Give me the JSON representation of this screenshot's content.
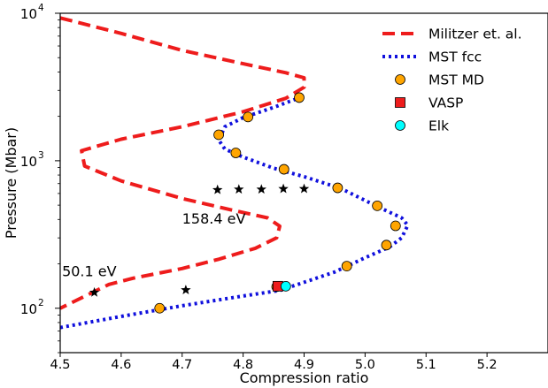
{
  "chart_data": {
    "type": "line",
    "title": "",
    "xlabel": "Compression ratio",
    "ylabel": "Pressure (Mbar)",
    "xlim": [
      4.5,
      5.3
    ],
    "ylim": [
      50,
      10000
    ],
    "yscale": "log",
    "grid": false,
    "legend_position": "top-right",
    "x_ticks": [
      4.5,
      4.6,
      4.7,
      4.8,
      4.9,
      5.0,
      5.1,
      5.2
    ],
    "x_tick_labels": [
      "4.5",
      "4.6",
      "4.7",
      "4.8",
      "4.9",
      "5.0",
      "5.1",
      "5.2"
    ],
    "y_ticks": [
      100,
      1000,
      10000
    ],
    "y_tick_labels": [
      {
        "base": "10",
        "exp": "2"
      },
      {
        "base": "10",
        "exp": "3"
      },
      {
        "base": "10",
        "exp": "4"
      }
    ],
    "series": [
      {
        "name": "Militzer et. al.",
        "kind": "line",
        "style": "dashed",
        "color": "#ee1c1c",
        "points": [
          [
            4.5,
            9300
          ],
          [
            4.6,
            7300
          ],
          [
            4.7,
            5600
          ],
          [
            4.8,
            4550
          ],
          [
            4.87,
            3950
          ],
          [
            4.9,
            3650
          ],
          [
            4.9,
            3150
          ],
          [
            4.87,
            2650
          ],
          [
            4.8,
            2150
          ],
          [
            4.7,
            1700
          ],
          [
            4.6,
            1400
          ],
          [
            4.535,
            1170
          ],
          [
            4.54,
            920
          ],
          [
            4.6,
            730
          ],
          [
            4.7,
            555
          ],
          [
            4.78,
            465
          ],
          [
            4.84,
            410
          ],
          [
            4.86,
            360
          ],
          [
            4.855,
            300
          ],
          [
            4.82,
            255
          ],
          [
            4.76,
            215
          ],
          [
            4.7,
            186
          ],
          [
            4.62,
            160
          ],
          [
            4.58,
            145
          ],
          [
            4.5,
            100
          ]
        ]
      },
      {
        "name": "MST fcc",
        "kind": "line",
        "style": "dotted",
        "color": "#1010dd",
        "points": [
          [
            4.5,
            74
          ],
          [
            4.6,
            88
          ],
          [
            4.7,
            104
          ],
          [
            4.8,
            121
          ],
          [
            4.86,
            132
          ],
          [
            4.9,
            150
          ],
          [
            4.95,
            176
          ],
          [
            5.0,
            220
          ],
          [
            5.04,
            260
          ],
          [
            5.06,
            300
          ],
          [
            5.07,
            365
          ],
          [
            5.06,
            410
          ],
          [
            5.02,
            490
          ],
          [
            4.96,
            650
          ],
          [
            4.9,
            780
          ],
          [
            4.85,
            890
          ],
          [
            4.8,
            1060
          ],
          [
            4.77,
            1200
          ],
          [
            4.76,
            1380
          ],
          [
            4.77,
            1700
          ],
          [
            4.8,
            1960
          ],
          [
            4.85,
            2300
          ],
          [
            4.89,
            2650
          ]
        ]
      }
    ],
    "markers": [
      {
        "name": "MST MD",
        "shape": "circle",
        "color": "#ffa500",
        "points": [
          [
            4.663,
            100
          ],
          [
            4.855,
            140
          ],
          [
            4.97,
            193
          ],
          [
            5.035,
            268
          ],
          [
            5.05,
            362
          ],
          [
            5.02,
            495
          ],
          [
            4.955,
            655
          ],
          [
            4.867,
            875
          ],
          [
            4.788,
            1130
          ],
          [
            4.76,
            1500
          ],
          [
            4.808,
            1980
          ],
          [
            4.892,
            2680
          ]
        ]
      },
      {
        "name": "VASP",
        "shape": "square",
        "color": "#ee1c1c",
        "points": [
          [
            4.857,
            141
          ]
        ]
      },
      {
        "name": "Elk",
        "shape": "circle",
        "color": "#00ffff",
        "points": [
          [
            4.87,
            141
          ]
        ]
      },
      {
        "name": "",
        "shape": "star",
        "color": "#000000",
        "points": [
          [
            4.556,
            128
          ],
          [
            4.706,
            133
          ],
          [
            4.758,
            635
          ],
          [
            4.793,
            640
          ],
          [
            4.83,
            640
          ],
          [
            4.866,
            645
          ],
          [
            4.9,
            645
          ]
        ]
      }
    ],
    "annotations": [
      {
        "text": "50.1 eV",
        "x": 4.503,
        "y": 165
      },
      {
        "text": "158.4 eV",
        "x": 4.7,
        "y": 375
      }
    ]
  }
}
